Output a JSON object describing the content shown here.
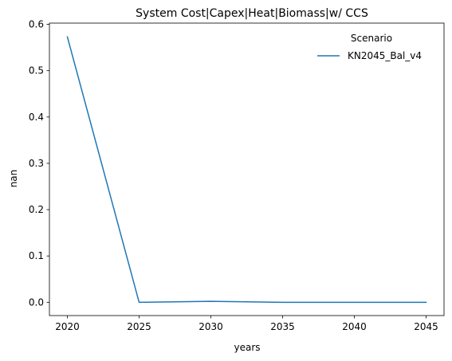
{
  "chart_data": {
    "type": "line",
    "title": "System Cost|Capex|Heat|Biomass|w/ CCS",
    "xlabel": "years",
    "ylabel": "nan",
    "x": [
      2020,
      2025,
      2030,
      2035,
      2040,
      2045
    ],
    "x_ticks": [
      "2020",
      "2025",
      "2030",
      "2035",
      "2040",
      "2045"
    ],
    "y_ticks": [
      "0.0",
      "0.1",
      "0.2",
      "0.3",
      "0.4",
      "0.5",
      "0.6"
    ],
    "xlim": [
      2018.75,
      2046.25
    ],
    "ylim": [
      -0.0287,
      0.6027
    ],
    "grid": false,
    "legend": {
      "title": "Scenario",
      "placement": "upper right"
    },
    "series": [
      {
        "name": "KN2045_Bal_v4",
        "color": "#1f77b4",
        "values": [
          0.573,
          0.0,
          0.002,
          0.0,
          0.0,
          0.0
        ]
      }
    ]
  }
}
